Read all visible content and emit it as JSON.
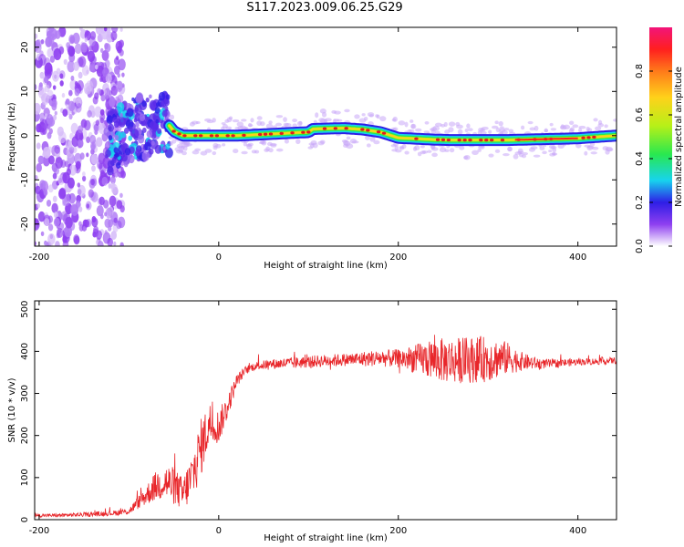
{
  "page_title": "S117.2023.009.06.25.G29",
  "colors": {
    "snr_line": "#e8262a",
    "ridge_red": "#e31a1c",
    "frame": "#000000",
    "colormap_stops": [
      "#ffffff",
      "#8e3ff0",
      "#2e1ee6",
      "#17d3ee",
      "#29e84f",
      "#b7f018",
      "#ffd11a",
      "#ff7a1a",
      "#ff1f1f",
      "#f2147a"
    ]
  },
  "chart_data": [
    {
      "type": "heatmap",
      "title": "S117.2023.009.06.25.G29",
      "xlabel": "Height of straight line (km)",
      "ylabel": "Frequency (Hz)",
      "xlim": [
        -205,
        443
      ],
      "ylim": [
        -25,
        24.5
      ],
      "xticks": [
        -200,
        0,
        200,
        400
      ],
      "yticks": [
        -20,
        -10,
        0,
        10,
        20
      ],
      "grid": false,
      "colorbar": {
        "label": "Normalized spectral amplitude",
        "range": [
          0,
          1
        ],
        "ticks": [
          0.0,
          0.2,
          0.4,
          0.6,
          0.8
        ]
      },
      "ridge": {
        "description_points_x": [
          -125,
          -110,
          -95,
          -80,
          -70,
          -60,
          -50,
          -40,
          -20,
          0,
          20,
          40,
          60,
          80,
          100,
          105,
          120,
          140,
          160,
          180,
          200,
          220,
          240,
          260,
          280,
          300,
          320,
          340,
          360,
          380,
          400,
          420,
          443
        ],
        "frequency_hz": [
          -1.5,
          -0.5,
          1.5,
          2.0,
          2.5,
          3.5,
          1.0,
          0.0,
          0.0,
          0.0,
          0.0,
          0.2,
          0.4,
          0.6,
          0.8,
          1.5,
          1.6,
          1.7,
          1.4,
          0.8,
          -0.5,
          -0.7,
          -0.9,
          -1.0,
          -1.0,
          -1.0,
          -1.0,
          -0.9,
          -0.8,
          -0.7,
          -0.6,
          -0.3,
          0.0
        ]
      },
      "noise_region_x": [
        -205,
        -115
      ]
    },
    {
      "type": "line",
      "xlabel": "Height of straight line (km)",
      "ylabel": "SNR (10 * v/v)",
      "xlim": [
        -205,
        443
      ],
      "ylim": [
        0,
        520
      ],
      "xticks": [
        -200,
        0,
        200,
        400
      ],
      "yticks": [
        0,
        100,
        200,
        300,
        400,
        500
      ],
      "grid": false,
      "series": [
        {
          "x": [
            -205,
            -180,
            -150,
            -120,
            -100,
            -90,
            -80,
            -70,
            -60,
            -50,
            -40,
            -30,
            -20,
            -10,
            0,
            10,
            20,
            30,
            40,
            60,
            80,
            100,
            120,
            140,
            160,
            180,
            200,
            220,
            240,
            260,
            280,
            300,
            320,
            340,
            360,
            380,
            400,
            420,
            440
          ],
          "y": [
            10,
            10,
            12,
            15,
            20,
            40,
            60,
            80,
            90,
            80,
            60,
            100,
            170,
            230,
            220,
            270,
            330,
            355,
            365,
            370,
            372,
            375,
            378,
            380,
            382,
            384,
            383,
            382,
            380,
            378,
            380,
            382,
            384,
            375,
            370,
            372,
            375,
            376,
            378
          ],
          "noise_amplitude": [
            4,
            4,
            5,
            6,
            8,
            15,
            25,
            35,
            45,
            45,
            40,
            60,
            70,
            50,
            40,
            30,
            15,
            10,
            10,
            12,
            14,
            14,
            15,
            15,
            18,
            20,
            22,
            35,
            50,
            55,
            55,
            55,
            40,
            20,
            12,
            10,
            8,
            8,
            8
          ]
        }
      ]
    }
  ]
}
